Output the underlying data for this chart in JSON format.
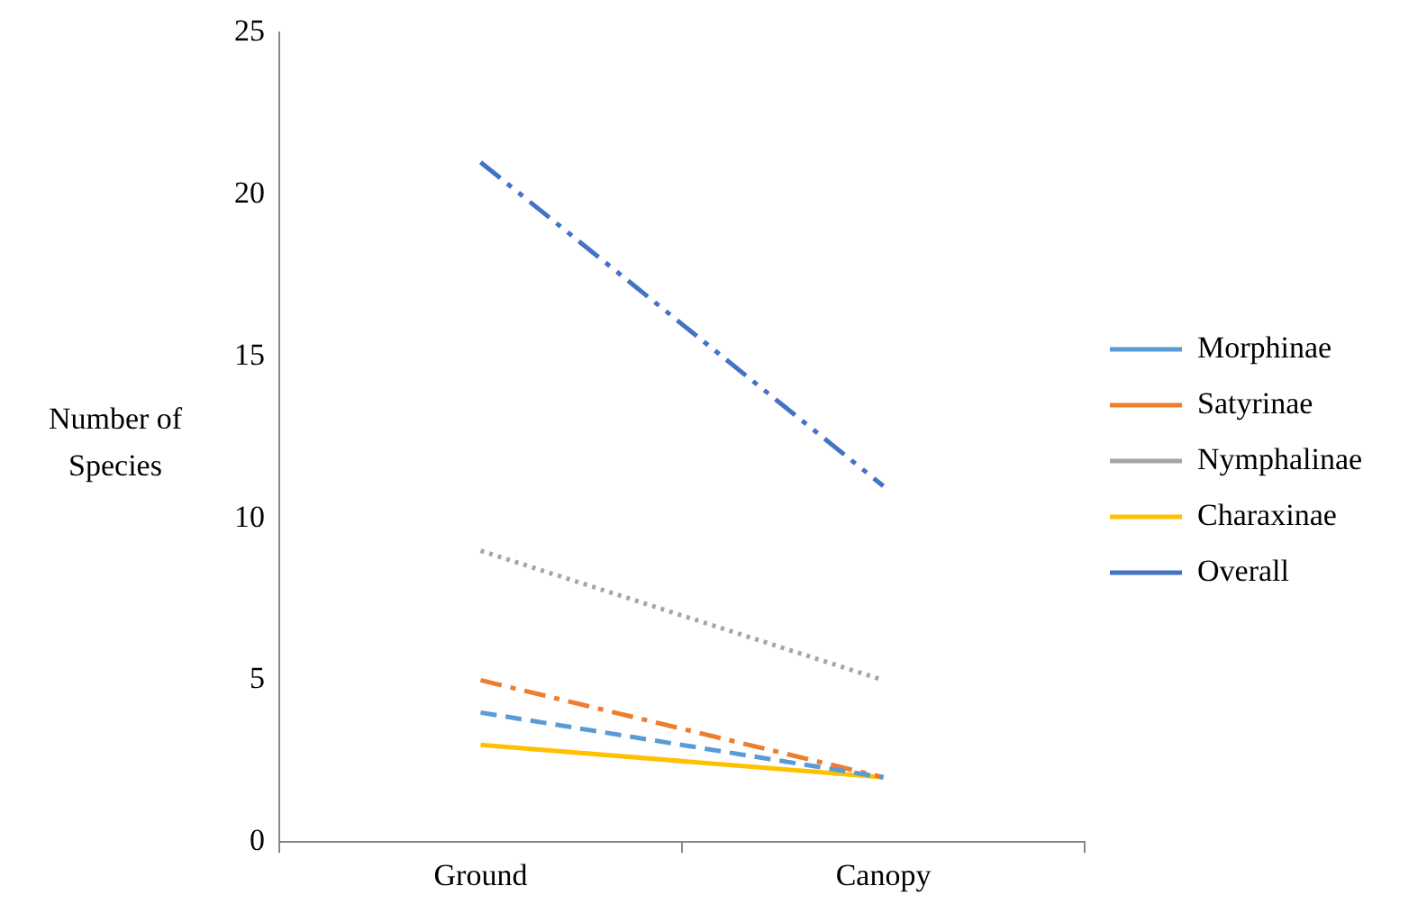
{
  "chart_data": {
    "type": "line",
    "ylabel": "Number of Species",
    "categories": [
      "Ground",
      "Canopy"
    ],
    "series": [
      {
        "name": "Morphinae",
        "color": "#5b9bd5",
        "line_style": "dashed",
        "values": [
          4,
          2
        ]
      },
      {
        "name": "Satyrinae",
        "color": "#ed7d31",
        "line_style": "dashdot",
        "values": [
          5,
          2
        ]
      },
      {
        "name": "Nymphalinae",
        "color": "#a5a5a5",
        "line_style": "dotted",
        "values": [
          9,
          5
        ]
      },
      {
        "name": "Charaxinae",
        "color": "#ffc000",
        "line_style": "solid",
        "values": [
          3,
          2
        ]
      },
      {
        "name": "Overall",
        "color": "#4472c4",
        "line_style": "dashdotdot",
        "values": [
          21,
          11
        ]
      }
    ],
    "ylim": [
      0,
      25
    ],
    "yticks": [
      0,
      5,
      10,
      15,
      20,
      25
    ],
    "grid": false,
    "legend": "right",
    "marker": "none"
  }
}
